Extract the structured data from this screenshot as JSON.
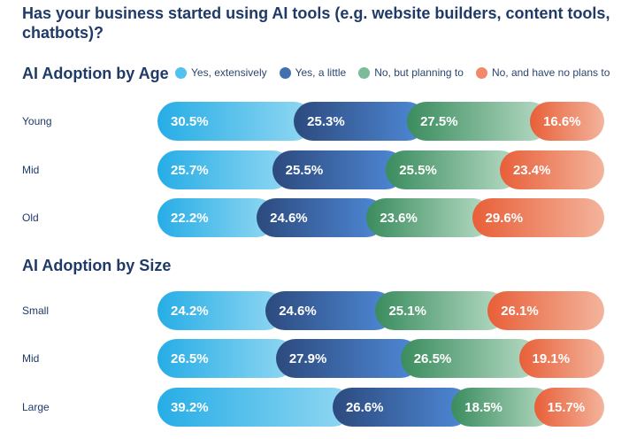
{
  "title": "Has your business started using AI tools (e.g. website builders, content tools, chatbots)?",
  "legend": [
    {
      "label": "Yes, extensively",
      "color": "#4fc3ee"
    },
    {
      "label": "Yes, a little",
      "color": "#4470b0"
    },
    {
      "label": "No, but planning to",
      "color": "#7dbb98"
    },
    {
      "label": "No, and have no plans to",
      "color": "#f08a6a"
    }
  ],
  "chart_data": [
    {
      "type": "bar",
      "stacked": true,
      "orientation": "horizontal",
      "title": "AI Adoption by Age",
      "categories": [
        "Young",
        "Mid",
        "Old"
      ],
      "series": [
        {
          "name": "Yes, extensively",
          "values": [
            30.5,
            25.7,
            22.2
          ]
        },
        {
          "name": "Yes, a little",
          "values": [
            25.3,
            25.5,
            24.6
          ]
        },
        {
          "name": "No, but planning to",
          "values": [
            27.5,
            25.5,
            23.6
          ]
        },
        {
          "name": "No, and have no plans to",
          "values": [
            16.6,
            23.4,
            29.6
          ]
        }
      ],
      "value_suffix": "%"
    },
    {
      "type": "bar",
      "stacked": true,
      "orientation": "horizontal",
      "title": "AI Adoption by Size",
      "categories": [
        "Small",
        "Mid",
        "Large"
      ],
      "series": [
        {
          "name": "Yes, extensively",
          "values": [
            24.2,
            26.5,
            39.2
          ]
        },
        {
          "name": "Yes, a little",
          "values": [
            24.6,
            27.9,
            26.6
          ]
        },
        {
          "name": "No, but planning to",
          "values": [
            25.1,
            26.5,
            18.5
          ]
        },
        {
          "name": "No, and have no plans to",
          "values": [
            26.1,
            19.1,
            15.7
          ]
        }
      ],
      "value_suffix": "%"
    }
  ]
}
